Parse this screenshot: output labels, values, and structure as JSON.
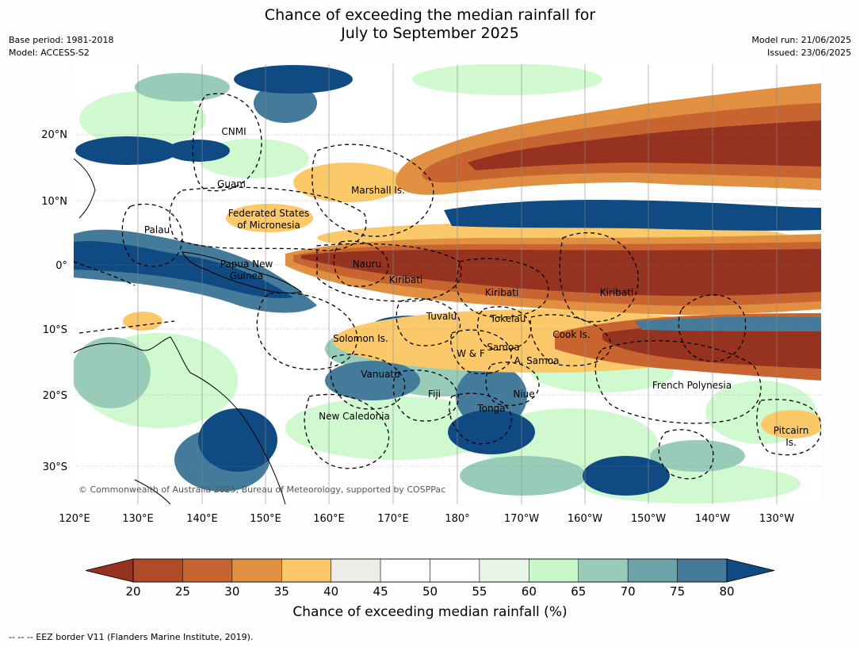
{
  "title_line1": "Chance of exceeding the median rainfall for",
  "title_line2": "July to September 2025",
  "meta": {
    "base_period": "Base period: 1981-2018",
    "model": "Model: ACCESS-S2",
    "model_run": "Model run: 21/06/2025",
    "issued": "Issued: 23/06/2025"
  },
  "axes": {
    "lat_labels": [
      "20°N",
      "10°N",
      "0°",
      "10°S",
      "20°S",
      "30°S"
    ],
    "lon_labels": [
      "120°E",
      "130°E",
      "140°E",
      "150°E",
      "160°E",
      "170°E",
      "180°",
      "170°W",
      "160°W",
      "150°W",
      "140°W",
      "130°W"
    ]
  },
  "places": [
    {
      "name": "CNMI"
    },
    {
      "name": "Guam"
    },
    {
      "name": "Marshall Is."
    },
    {
      "name": "Federated States"
    },
    {
      "name": "of Micronesia"
    },
    {
      "name": "Palau"
    },
    {
      "name": "Papua New"
    },
    {
      "name": "Guinea"
    },
    {
      "name": "Nauru"
    },
    {
      "name": "Kiribati"
    },
    {
      "name": "Kiribati"
    },
    {
      "name": "Kiribati"
    },
    {
      "name": "Tuvalu"
    },
    {
      "name": "Tokelau"
    },
    {
      "name": "Cook Is."
    },
    {
      "name": "Solomon Is."
    },
    {
      "name": "Samoa"
    },
    {
      "name": "W & F"
    },
    {
      "name": "A. Samoa"
    },
    {
      "name": "Vanuatu"
    },
    {
      "name": "Fiji"
    },
    {
      "name": "Niue"
    },
    {
      "name": "French Polynesia"
    },
    {
      "name": "Tonga"
    },
    {
      "name": "New Caledonia"
    },
    {
      "name": "Pitcairn"
    },
    {
      "name": "Is."
    }
  ],
  "copyright": "© Commonwealth of Australia 2025, Bureau of Meteorology, supported by COSPPac",
  "colorbar": {
    "ticks": [
      "20",
      "25",
      "30",
      "35",
      "40",
      "45",
      "50",
      "55",
      "60",
      "65",
      "70",
      "75",
      "80"
    ],
    "colors": [
      "#b04a27",
      "#c8642f",
      "#e09040",
      "#fcc96a",
      "#eeece6",
      "#ffffff",
      "#ffffff",
      "#e6f5e6",
      "#c8f8c8",
      "#98ccb8",
      "#6ca3a8",
      "#447a9a"
    ],
    "under_color": "#963220",
    "over_color": "#0f4a82",
    "label": "Chance of exceeding median rainfall (%)"
  },
  "footer": "--  --  -- EEZ border V11 (Flanders Marine Institute, 2019)."
}
